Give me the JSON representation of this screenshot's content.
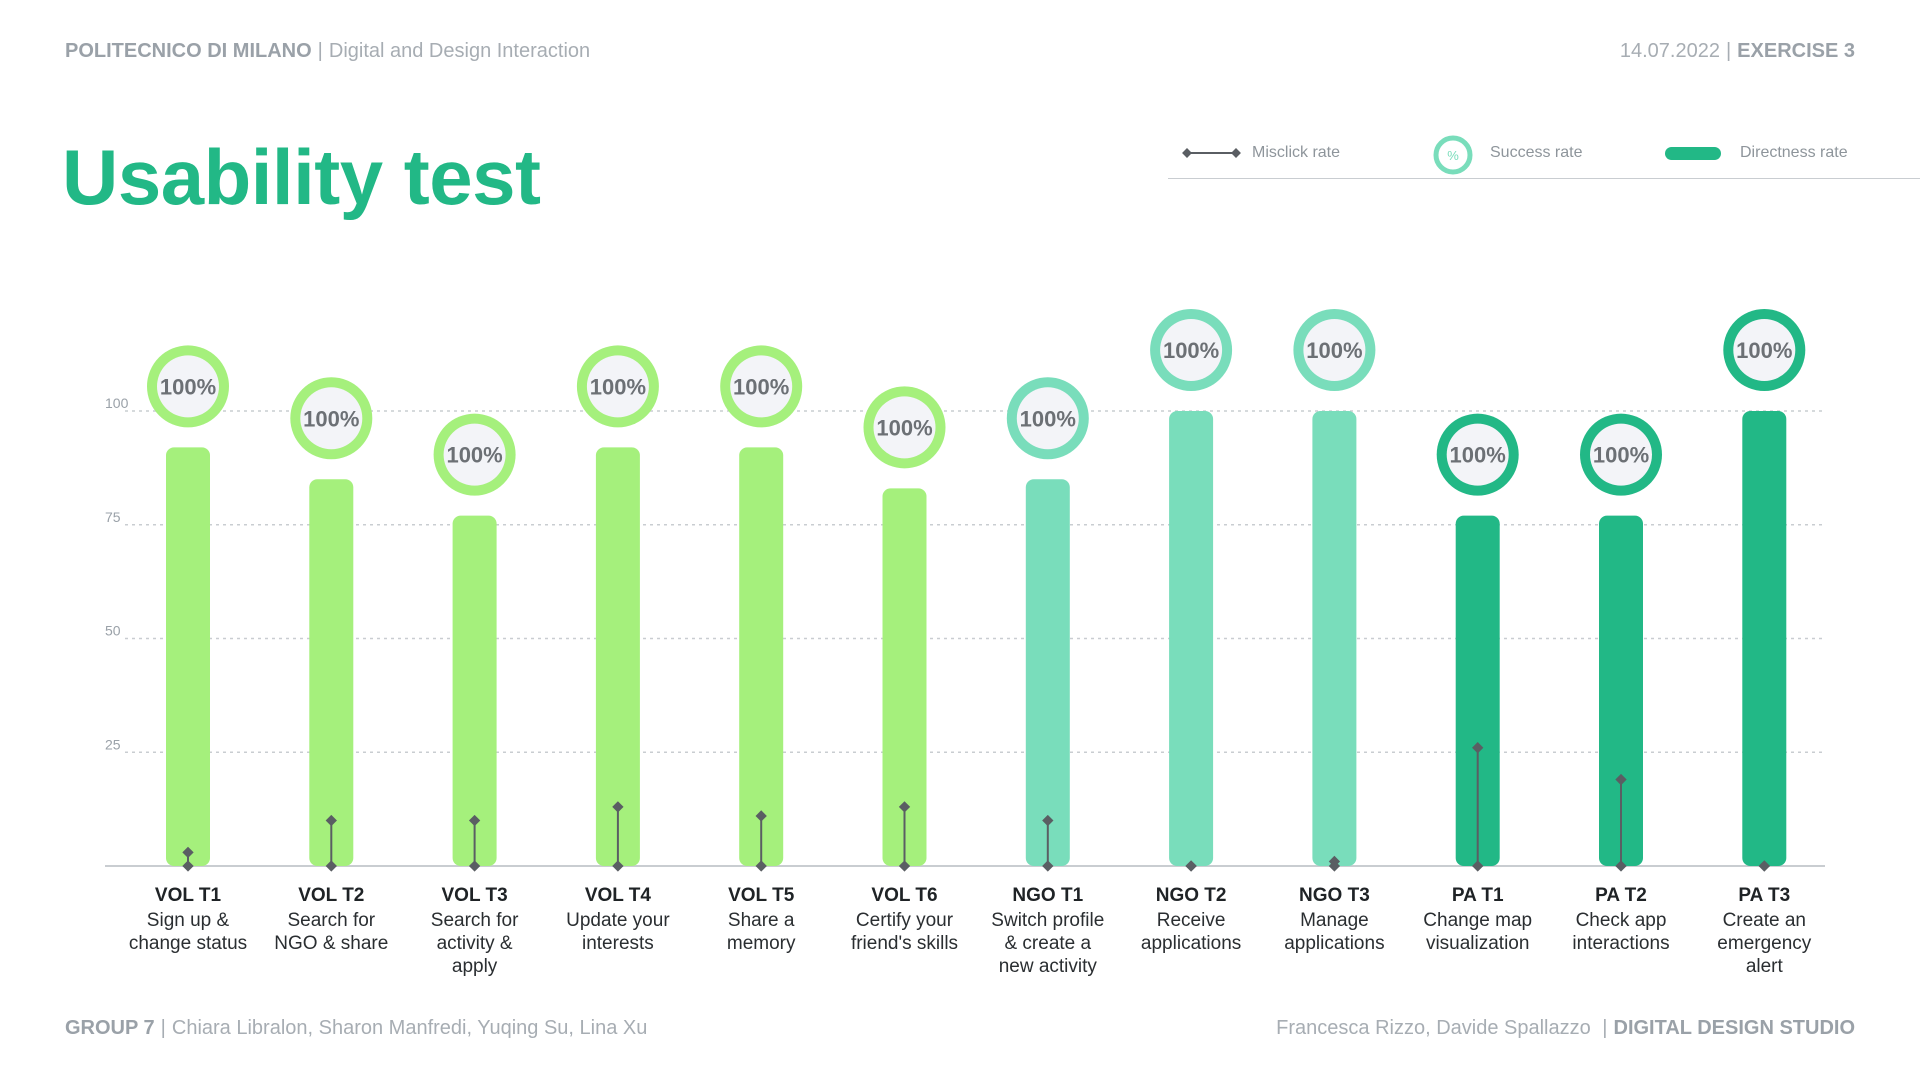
{
  "header": {
    "org": "POLITECNICO DI MILANO",
    "course": "Digital and Design Interaction",
    "date": "14.07.2022",
    "exercise": "EXERCISE 3"
  },
  "page_title": "Usability test",
  "legend": {
    "misclick": "Misclick rate",
    "success": "Success rate",
    "success_symbol": "%",
    "directness": "Directness rate"
  },
  "footer": {
    "group": "GROUP 7",
    "members": "Chiara Libralon, Sharon Manfredi, Yuqing Su, Lina Xu",
    "professors": "Francesca Rizzo, Davide Spallazzo",
    "studio": "DIGITAL DESIGN STUDIO"
  },
  "colors": {
    "vol": "#a5f07c",
    "ngo": "#79ddbb",
    "pa": "#22b886",
    "misclick": "#5a5e63",
    "grid": "#c9cdd1",
    "badge_fill": "#f3f4f8",
    "badge_text": "#6c7075"
  },
  "chart_data": {
    "type": "bar",
    "ylim": [
      0,
      100
    ],
    "yticks": [
      25,
      50,
      75,
      100
    ],
    "tasks": [
      {
        "code": "VOL T1",
        "desc": [
          "Sign up &",
          "change status"
        ],
        "group": "vol",
        "directness": 92,
        "success": 100,
        "success_label": "100%",
        "misclick": 3
      },
      {
        "code": "VOL T2",
        "desc": [
          "Search for",
          "NGO & share"
        ],
        "group": "vol",
        "directness": 85,
        "success": 100,
        "success_label": "100%",
        "misclick": 10
      },
      {
        "code": "VOL T3",
        "desc": [
          "Search for",
          "activity &",
          "apply"
        ],
        "group": "vol",
        "directness": 77,
        "success": 100,
        "success_label": "100%",
        "misclick": 10
      },
      {
        "code": "VOL T4",
        "desc": [
          "Update your",
          "interests"
        ],
        "group": "vol",
        "directness": 92,
        "success": 100,
        "success_label": "100%",
        "misclick": 13
      },
      {
        "code": "VOL T5",
        "desc": [
          "Share a",
          "memory"
        ],
        "group": "vol",
        "directness": 92,
        "success": 100,
        "success_label": "100%",
        "misclick": 11
      },
      {
        "code": "VOL T6",
        "desc": [
          "Certify your",
          "friend's skills"
        ],
        "group": "vol",
        "directness": 83,
        "success": 100,
        "success_label": "100%",
        "misclick": 13
      },
      {
        "code": "NGO T1",
        "desc": [
          "Switch profile",
          "& create a",
          "new activity"
        ],
        "group": "ngo",
        "directness": 85,
        "success": 100,
        "success_label": "100%",
        "misclick": 10
      },
      {
        "code": "NGO T2",
        "desc": [
          "Receive",
          "applications"
        ],
        "group": "ngo",
        "directness": 100,
        "success": 100,
        "success_label": "100%",
        "misclick": 0
      },
      {
        "code": "NGO T3",
        "desc": [
          "Manage",
          "applications"
        ],
        "group": "ngo",
        "directness": 100,
        "success": 100,
        "success_label": "100%",
        "misclick": 1
      },
      {
        "code": "PA T1",
        "desc": [
          "Change map",
          "visualization"
        ],
        "group": "pa",
        "directness": 77,
        "success": 100,
        "success_label": "100%",
        "misclick": 26
      },
      {
        "code": "PA T2",
        "desc": [
          "Check app",
          "interactions"
        ],
        "group": "pa",
        "directness": 77,
        "success": 100,
        "success_label": "100%",
        "misclick": 19
      },
      {
        "code": "PA T3",
        "desc": [
          "Create an",
          "emergency",
          "alert"
        ],
        "group": "pa",
        "directness": 100,
        "success": 100,
        "success_label": "100%",
        "misclick": 0
      }
    ]
  }
}
